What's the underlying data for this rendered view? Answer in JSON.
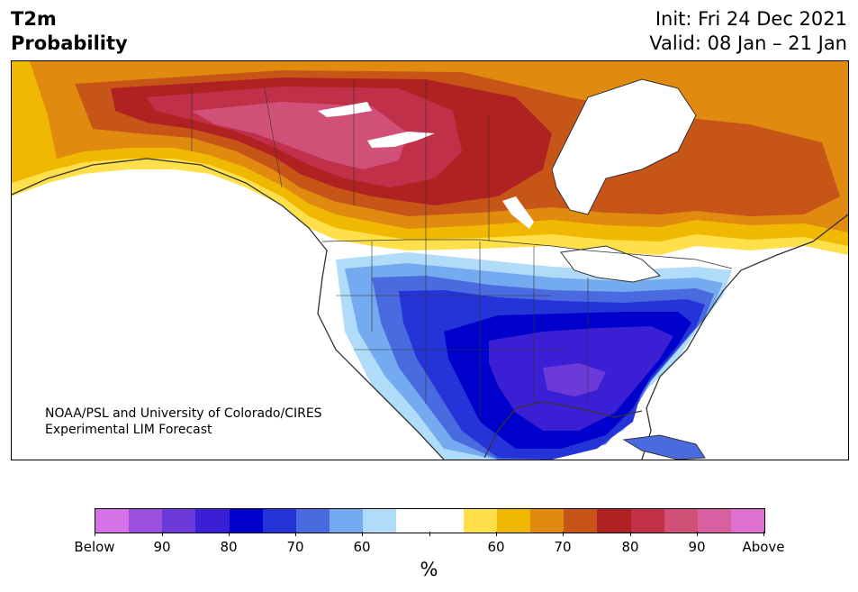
{
  "title": {
    "line1": "T2m",
    "line2": "Probability"
  },
  "init": "Init: Fri 24 Dec 2021",
  "valid": "Valid: 08 Jan – 21 Jan",
  "credit": {
    "line1": "NOAA/PSL and University of Colorado/CIRES",
    "line2": "Experimental LIM Forecast"
  },
  "colorbar": {
    "colors": [
      "#d672e8",
      "#9b4fdf",
      "#6b3ad8",
      "#3a1fd4",
      "#0000cc",
      "#2534d8",
      "#4a6ae0",
      "#74aaf0",
      "#b0dcfa",
      "#ffffff",
      "#ffffff",
      "#ffe04a",
      "#f0b800",
      "#e08a10",
      "#c85518",
      "#b02222",
      "#c03048",
      "#d05078",
      "#d960a0",
      "#e070d0"
    ],
    "labels": [
      "Below",
      "90",
      "80",
      "70",
      "60",
      "60",
      "70",
      "80",
      "90",
      "Above"
    ],
    "units": "%"
  },
  "map_colors": {
    "ocean": "#ffffff",
    "coast": "#333333",
    "warm_light": "#ffe04a",
    "warm_gold": "#f0b800",
    "warm_orange": "#e08a10",
    "warm_dark": "#c85518",
    "warm_red": "#b02222",
    "warm_crimson": "#c03048",
    "warm_pink": "#d05078",
    "cold_light": "#b0dcfa",
    "cold_sky": "#74aaf0",
    "cold_mid": "#4a6ae0",
    "cold_blue": "#2534d8",
    "cold_deep": "#0000cc",
    "cold_indigo": "#3a1fd4",
    "cold_violet": "#6b3ad8"
  }
}
